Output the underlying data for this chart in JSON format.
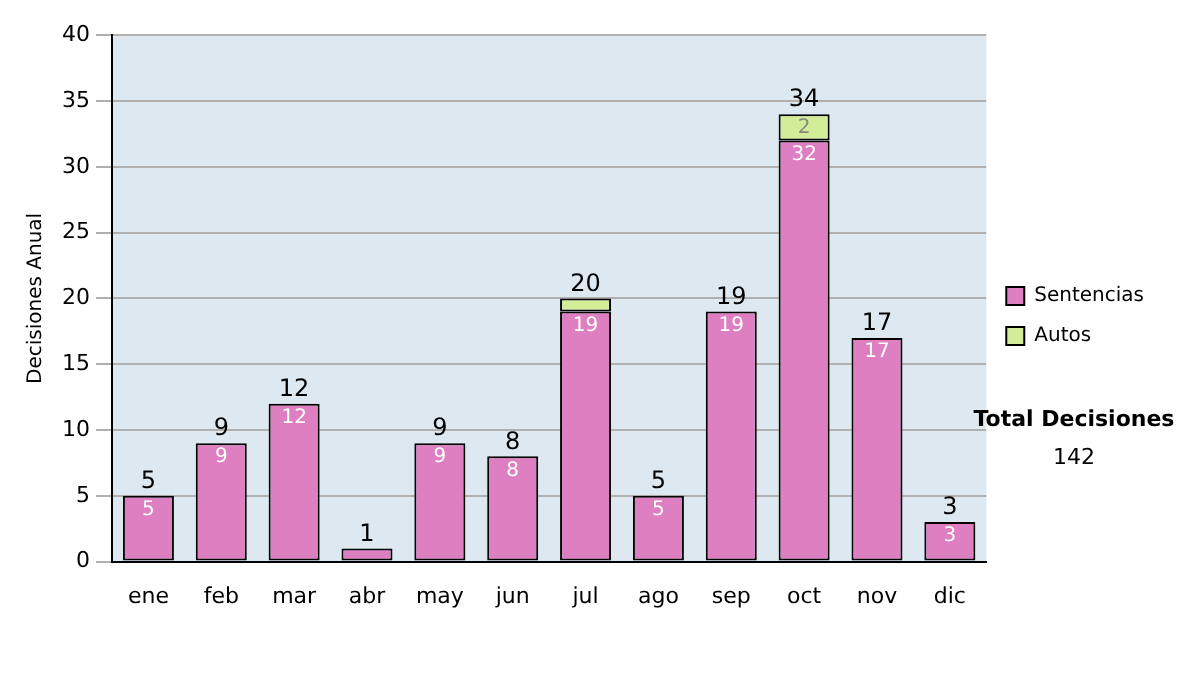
{
  "chart_data": {
    "type": "bar",
    "stacked": true,
    "ylabel": "Decisiones Anual",
    "categories": [
      "ene",
      "feb",
      "mar",
      "abr",
      "may",
      "jun",
      "jul",
      "ago",
      "sep",
      "oct",
      "nov",
      "dic"
    ],
    "series": [
      {
        "name": "Sentencias",
        "color": "#dd7fc0",
        "values": [
          5,
          9,
          12,
          1,
          9,
          8,
          19,
          5,
          19,
          32,
          17,
          3
        ],
        "value_labels": [
          "5",
          "9",
          "12",
          null,
          "9",
          "8",
          "19",
          "5",
          "19",
          "32",
          "17",
          "3"
        ]
      },
      {
        "name": "Autos",
        "color": "#d2ec98",
        "values": [
          0,
          0,
          0,
          0,
          0,
          0,
          1,
          0,
          0,
          2,
          0,
          0
        ],
        "value_labels": [
          null,
          null,
          null,
          null,
          null,
          null,
          null,
          null,
          null,
          "2",
          null,
          null
        ]
      }
    ],
    "totals": [
      "5",
      "9",
      "12",
      "1",
      "9",
      "8",
      "20",
      "5",
      "19",
      "34",
      "17",
      "3"
    ],
    "ylim": [
      0,
      40
    ],
    "yticks": [
      0,
      5,
      10,
      15,
      20,
      25,
      30,
      35,
      40
    ],
    "grid": "y",
    "legend": "right",
    "annotations": [
      "Total Decisiones",
      "142"
    ]
  }
}
